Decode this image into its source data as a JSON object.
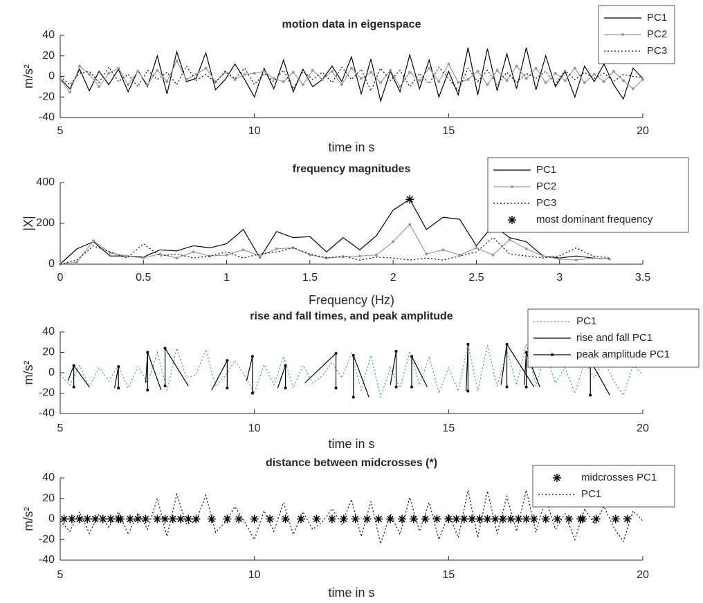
{
  "chart_data": [
    {
      "type": "line",
      "title": "motion data in eigenspace",
      "xlabel": "time in s",
      "ylabel": "m/s²",
      "xlim": [
        5,
        20
      ],
      "ylim": [
        -40,
        40
      ],
      "xticks": [
        5,
        10,
        15,
        20
      ],
      "yticks": [
        -40,
        -20,
        0,
        20,
        40
      ],
      "legend": "northeast",
      "x": [
        5,
        5.25,
        5.5,
        5.75,
        6,
        6.25,
        6.5,
        6.75,
        7,
        7.25,
        7.5,
        7.75,
        8,
        8.25,
        8.5,
        8.75,
        9,
        9.25,
        9.5,
        9.75,
        10,
        10.25,
        10.5,
        10.75,
        11,
        11.25,
        11.5,
        11.75,
        12,
        12.25,
        12.5,
        12.75,
        13,
        13.25,
        13.5,
        13.75,
        14,
        14.25,
        14.5,
        14.75,
        15,
        15.25,
        15.5,
        15.75,
        16,
        16.25,
        16.5,
        16.75,
        17,
        17.25,
        17.5,
        17.75,
        18,
        18.25,
        18.5,
        18.75,
        19,
        19.25,
        19.5,
        19.75,
        20
      ],
      "series": [
        {
          "name": "PC1",
          "color": "#000000",
          "linestyle": "solid",
          "marker": "none",
          "values": [
            -2,
            -12,
            7,
            -14,
            5,
            -8,
            7,
            -15,
            6,
            -10,
            20,
            -17,
            24,
            -5,
            -2,
            23,
            -13,
            -3,
            12,
            -3,
            -20,
            8,
            -12,
            16,
            -15,
            7,
            -10,
            -3,
            10,
            -5,
            19,
            -17,
            17,
            -24,
            5,
            -15,
            21,
            -12,
            16,
            -20,
            5,
            -18,
            28,
            -18,
            27,
            -14,
            22,
            -12,
            28,
            -13,
            20,
            -10,
            5,
            -20,
            10,
            -5,
            12,
            -8,
            -22,
            8,
            -2
          ]
        },
        {
          "name": "PC2",
          "color": "#999999",
          "linestyle": "solid",
          "marker": "dot",
          "values": [
            -3,
            -15,
            10,
            2,
            -10,
            3,
            8,
            -8,
            5,
            -8,
            6,
            -5,
            15,
            -3,
            2,
            8,
            -5,
            4,
            -3,
            2,
            3,
            5,
            -2,
            -5,
            4,
            -8,
            6,
            -3,
            5,
            -8,
            8,
            -2,
            4,
            -6,
            6,
            -10,
            4,
            -4,
            8,
            -5,
            12,
            -6,
            -3,
            5,
            -8,
            6,
            -4,
            10,
            -2,
            8,
            -6,
            3,
            -4,
            8,
            -6,
            2,
            -5,
            5,
            -4,
            -12,
            -3
          ]
        },
        {
          "name": "PC3",
          "color": "#000000",
          "linestyle": "dotted",
          "marker": "none",
          "values": [
            0,
            -8,
            3,
            5,
            -6,
            9,
            -5,
            2,
            -10,
            6,
            -3,
            4,
            -8,
            10,
            -4,
            2,
            -6,
            5,
            -2,
            8,
            -8,
            3,
            -5,
            6,
            -12,
            5,
            -3,
            4,
            -6,
            9,
            -3,
            7,
            -14,
            8,
            -4,
            6,
            -10,
            3,
            -7,
            9,
            -2,
            -14,
            8,
            -5,
            6,
            -8,
            4,
            -6,
            3,
            -2,
            5,
            -8,
            6,
            -3,
            4,
            -2,
            3,
            -5,
            2,
            0,
            -1
          ]
        }
      ]
    },
    {
      "type": "line",
      "title": "frequency magnitudes",
      "xlabel": "Frequency (Hz)",
      "ylabel": "|X|",
      "xlim": [
        0,
        3.5
      ],
      "ylim": [
        0,
        400
      ],
      "xticks": [
        0,
        0.5,
        1,
        1.5,
        2,
        2.5,
        3,
        3.5
      ],
      "yticks": [
        0,
        200,
        400
      ],
      "legend": "northeast",
      "x": [
        0,
        0.1,
        0.2,
        0.3,
        0.4,
        0.5,
        0.6,
        0.7,
        0.8,
        0.9,
        1,
        1.1,
        1.2,
        1.3,
        1.4,
        1.5,
        1.6,
        1.7,
        1.8,
        1.9,
        2,
        2.1,
        2.2,
        2.3,
        2.4,
        2.5,
        2.6,
        2.7,
        2.8,
        2.9,
        3,
        3.1,
        3.2,
        3.3
      ],
      "series": [
        {
          "name": "PC1",
          "color": "#000000",
          "linestyle": "solid",
          "marker": "none",
          "values": [
            0,
            75,
            110,
            40,
            40,
            35,
            70,
            65,
            90,
            80,
            100,
            170,
            30,
            160,
            130,
            135,
            60,
            130,
            70,
            140,
            265,
            318,
            170,
            230,
            220,
            90,
            190,
            130,
            110,
            40,
            30,
            40,
            30,
            25
          ]
        },
        {
          "name": "PC2",
          "color": "#999999",
          "linestyle": "solid",
          "marker": "dot",
          "values": [
            0,
            10,
            115,
            55,
            40,
            30,
            50,
            30,
            60,
            40,
            45,
            70,
            40,
            75,
            80,
            45,
            30,
            35,
            40,
            45,
            110,
            195,
            50,
            70,
            45,
            80,
            45,
            120,
            75,
            40,
            25,
            20,
            30,
            25
          ]
        },
        {
          "name": "PC3",
          "color": "#000000",
          "linestyle": "dotted",
          "marker": "none",
          "values": [
            0,
            20,
            90,
            60,
            30,
            100,
            40,
            50,
            30,
            40,
            60,
            30,
            50,
            60,
            80,
            50,
            30,
            40,
            20,
            35,
            30,
            20,
            30,
            20,
            40,
            60,
            130,
            50,
            40,
            30,
            40,
            80,
            40,
            30
          ]
        },
        {
          "name": "most dominant frequency",
          "color": "#000000",
          "linestyle": "none",
          "marker": "star",
          "x": [
            2.1
          ],
          "values": [
            318
          ]
        }
      ]
    },
    {
      "type": "line",
      "title": "rise and fall times, and peak amplitude",
      "xlabel": "time in s",
      "ylabel": "m/s²",
      "xlim": [
        5,
        20
      ],
      "ylim": [
        -40,
        40
      ],
      "xticks": [
        5,
        10,
        15,
        20
      ],
      "yticks": [
        -40,
        -20,
        0,
        20,
        40
      ],
      "legend": "northeast",
      "x": [
        5,
        5.25,
        5.5,
        5.75,
        6,
        6.25,
        6.5,
        6.75,
        7,
        7.25,
        7.5,
        7.75,
        8,
        8.25,
        8.5,
        8.75,
        9,
        9.25,
        9.5,
        9.75,
        10,
        10.25,
        10.5,
        10.75,
        11,
        11.25,
        11.5,
        11.75,
        12,
        12.25,
        12.5,
        12.75,
        13,
        13.25,
        13.5,
        13.75,
        14,
        14.25,
        14.5,
        14.75,
        15,
        15.25,
        15.5,
        15.75,
        16,
        16.25,
        16.5,
        16.75,
        17,
        17.25,
        17.5,
        17.75,
        18,
        18.25,
        18.5,
        18.75,
        19,
        19.25,
        19.5,
        19.75,
        20
      ],
      "series": [
        {
          "name": "PC1",
          "color": "#3a8fd0",
          "linestyle": "dotted",
          "marker": "none",
          "values": [
            -2,
            -12,
            7,
            -14,
            5,
            -8,
            7,
            -15,
            6,
            -10,
            20,
            -17,
            24,
            -5,
            -2,
            23,
            -13,
            -3,
            12,
            -3,
            -20,
            8,
            -12,
            16,
            -15,
            7,
            -10,
            -3,
            10,
            -5,
            19,
            -17,
            17,
            -24,
            5,
            -15,
            21,
            -12,
            16,
            -20,
            5,
            -18,
            28,
            -18,
            27,
            -14,
            22,
            -12,
            28,
            -13,
            20,
            -10,
            5,
            -20,
            10,
            -5,
            12,
            -8,
            -22,
            8,
            -2
          ]
        },
        {
          "name": "rise and fall PC1",
          "color": "#000000",
          "linestyle": "solid",
          "marker": "none",
          "x": [
            5.2,
            5.35,
            5.75,
            null,
            6.4,
            6.5,
            null,
            7.2,
            7.25,
            7.6,
            null,
            7.7,
            8.3,
            null,
            8.9,
            9.3,
            null,
            9.8,
            9.95,
            null,
            10.6,
            10.8,
            null,
            11.3,
            12.1,
            null,
            12.55,
            12.95,
            null,
            13.5,
            13.65,
            null,
            14.05,
            14.45,
            null,
            15.45,
            15.5,
            null,
            16.35,
            16.5,
            17.2,
            null,
            16.95,
            17,
            17.35,
            null,
            18.65,
            19.15
          ],
          "values": [
            -8,
            7,
            -14,
            null,
            -15,
            6,
            null,
            -10,
            20,
            -17,
            null,
            24,
            -13,
            null,
            -17,
            12,
            null,
            -8,
            16,
            null,
            -15,
            7,
            null,
            -10,
            19,
            null,
            17,
            -24,
            null,
            -12,
            21,
            null,
            16,
            -14,
            null,
            -18,
            28,
            null,
            -12,
            28,
            -14,
            null,
            -12,
            20,
            -14,
            null,
            12,
            -22
          ]
        },
        {
          "name": "peak amplitude PC1",
          "color": "#000000",
          "linestyle": "stem",
          "marker": "dot",
          "x": [
            5.35,
            6.5,
            7.25,
            7.7,
            9.3,
            9.95,
            10.8,
            12.1,
            12.55,
            13.65,
            14.05,
            15.5,
            16.5,
            17,
            18.65
          ],
          "values": [
            7,
            6,
            20,
            24,
            12,
            16,
            7,
            19,
            17,
            21,
            16,
            28,
            28,
            20,
            12
          ],
          "base": [
            -14,
            -15,
            -17,
            -13,
            -15,
            -20,
            -15,
            -15,
            -24,
            -14,
            -14,
            -18,
            -14,
            -14,
            -22
          ]
        }
      ]
    },
    {
      "type": "line",
      "title": "distance between midcrosses (*)",
      "xlabel": "time in s",
      "ylabel": "m/s²",
      "xlim": [
        5,
        20
      ],
      "ylim": [
        -40,
        40
      ],
      "xticks": [
        5,
        10,
        15,
        20
      ],
      "yticks": [
        -40,
        -20,
        0,
        20,
        40
      ],
      "legend": "northeast",
      "x": [
        5,
        5.25,
        5.5,
        5.75,
        6,
        6.25,
        6.5,
        6.75,
        7,
        7.25,
        7.5,
        7.75,
        8,
        8.25,
        8.5,
        8.75,
        9,
        9.25,
        9.5,
        9.75,
        10,
        10.25,
        10.5,
        10.75,
        11,
        11.25,
        11.5,
        11.75,
        12,
        12.25,
        12.5,
        12.75,
        13,
        13.25,
        13.5,
        13.75,
        14,
        14.25,
        14.5,
        14.75,
        15,
        15.25,
        15.5,
        15.75,
        16,
        16.25,
        16.5,
        16.75,
        17,
        17.25,
        17.5,
        17.75,
        18,
        18.25,
        18.5,
        18.75,
        19,
        19.25,
        19.5,
        19.75,
        20
      ],
      "series": [
        {
          "name": "midcrosses PC1",
          "color": "#000000",
          "linestyle": "none",
          "marker": "star",
          "x": [
            5.1,
            5.3,
            5.5,
            5.7,
            5.9,
            6.1,
            6.3,
            6.5,
            6.55,
            6.8,
            7,
            7.2,
            7.5,
            7.7,
            7.9,
            8.1,
            8.3,
            8.5,
            8.9,
            9.3,
            9.6,
            10,
            10.4,
            10.8,
            11.2,
            11.6,
            12,
            12.3,
            12.6,
            12.9,
            13.2,
            13.5,
            13.8,
            14.1,
            14.4,
            14.7,
            15,
            15.2,
            15.4,
            15.6,
            15.8,
            16,
            16.2,
            16.4,
            16.6,
            16.8,
            17,
            17.2,
            17.5,
            17.8,
            18.1,
            18.4,
            18.45,
            18.8,
            19.3,
            19.6
          ],
          "values": [
            0,
            0,
            0,
            0,
            0,
            0,
            0,
            0,
            0,
            0,
            0,
            0,
            0,
            0,
            0,
            0,
            0,
            0,
            0,
            0,
            0,
            0,
            0,
            0,
            0,
            0,
            0,
            0,
            0,
            0,
            0,
            0,
            0,
            0,
            0,
            0,
            0,
            0,
            0,
            0,
            0,
            0,
            0,
            0,
            0,
            0,
            0,
            0,
            0,
            0,
            0,
            0,
            0,
            0,
            0,
            0
          ]
        },
        {
          "name": "PC1",
          "color": "#000000",
          "linestyle": "dotted",
          "marker": "none",
          "values": [
            -2,
            -12,
            7,
            -14,
            5,
            -8,
            7,
            -15,
            6,
            -10,
            20,
            -17,
            24,
            -5,
            -2,
            23,
            -13,
            -3,
            12,
            -3,
            -20,
            8,
            -12,
            16,
            -15,
            7,
            -10,
            -3,
            10,
            -5,
            19,
            -17,
            17,
            -24,
            5,
            -15,
            21,
            -12,
            16,
            -20,
            5,
            -18,
            28,
            -18,
            27,
            -14,
            22,
            -12,
            28,
            -13,
            20,
            -10,
            5,
            -20,
            10,
            -5,
            12,
            -8,
            -22,
            8,
            -2
          ]
        }
      ]
    }
  ]
}
